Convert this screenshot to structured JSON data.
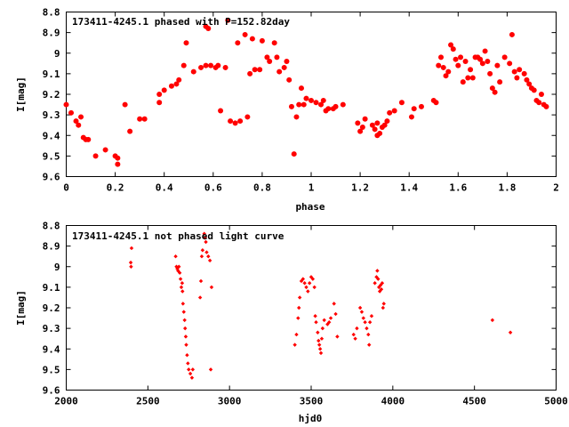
{
  "chart_data": [
    {
      "type": "scatter",
      "title": "173411-4245.1 phased with P=152.82day",
      "xlabel": "phase",
      "ylabel": "I[mag]",
      "xlim": [
        0,
        2
      ],
      "ylim": [
        8.8,
        9.6
      ],
      "y_inverted": true,
      "xticks": [
        0,
        0.2,
        0.4,
        0.6,
        0.8,
        1,
        1.2,
        1.4,
        1.6,
        1.8,
        2
      ],
      "xtick_labels": [
        "0",
        "0.2",
        "0.4",
        "0.6",
        "0.8",
        "1",
        "1.2",
        "1.4",
        "1.6",
        "1.8",
        "2"
      ],
      "yticks": [
        8.8,
        8.9,
        9.0,
        9.1,
        9.2,
        9.3,
        9.4,
        9.5,
        9.6
      ],
      "ytick_labels": [
        "8.8",
        "8.9",
        "9",
        "9.1",
        "9.2",
        "9.3",
        "9.4",
        "9.5",
        "9.6"
      ],
      "marker_color": "#ff0000",
      "marker": "filled circle",
      "points": [
        [
          0.0,
          9.25
        ],
        [
          0.02,
          9.29
        ],
        [
          0.04,
          9.33
        ],
        [
          0.05,
          9.35
        ],
        [
          0.06,
          9.31
        ],
        [
          0.07,
          9.41
        ],
        [
          0.08,
          9.42
        ],
        [
          0.09,
          9.42
        ],
        [
          0.12,
          9.5
        ],
        [
          0.16,
          9.47
        ],
        [
          0.2,
          9.5
        ],
        [
          0.21,
          9.54
        ],
        [
          0.21,
          9.51
        ],
        [
          0.24,
          9.25
        ],
        [
          0.26,
          9.38
        ],
        [
          0.3,
          9.32
        ],
        [
          0.32,
          9.32
        ],
        [
          0.38,
          9.24
        ],
        [
          0.38,
          9.2
        ],
        [
          0.4,
          9.18
        ],
        [
          0.43,
          9.16
        ],
        [
          0.45,
          9.15
        ],
        [
          0.46,
          9.13
        ],
        [
          0.48,
          9.06
        ],
        [
          0.49,
          8.95
        ],
        [
          0.52,
          9.09
        ],
        [
          0.55,
          9.07
        ],
        [
          0.57,
          9.06
        ],
        [
          0.57,
          8.87
        ],
        [
          0.58,
          8.88
        ],
        [
          0.59,
          9.06
        ],
        [
          0.61,
          9.07
        ],
        [
          0.62,
          9.06
        ],
        [
          0.63,
          9.28
        ],
        [
          0.65,
          9.07
        ],
        [
          0.66,
          8.84
        ],
        [
          0.67,
          9.33
        ],
        [
          0.69,
          9.34
        ],
        [
          0.7,
          8.95
        ],
        [
          0.71,
          9.33
        ],
        [
          0.73,
          8.91
        ],
        [
          0.74,
          9.31
        ],
        [
          0.75,
          9.1
        ],
        [
          0.76,
          8.93
        ],
        [
          0.77,
          9.08
        ],
        [
          0.79,
          9.08
        ],
        [
          0.8,
          8.94
        ],
        [
          0.82,
          9.02
        ],
        [
          0.83,
          9.04
        ],
        [
          0.85,
          8.95
        ],
        [
          0.86,
          9.02
        ],
        [
          0.87,
          9.09
        ],
        [
          0.89,
          9.07
        ],
        [
          0.9,
          9.04
        ],
        [
          0.91,
          9.13
        ],
        [
          0.92,
          9.26
        ],
        [
          0.93,
          9.49
        ],
        [
          0.94,
          9.31
        ],
        [
          0.95,
          9.25
        ],
        [
          0.96,
          9.17
        ],
        [
          0.97,
          9.25
        ],
        [
          0.98,
          9.22
        ],
        [
          1.0,
          9.23
        ],
        [
          1.02,
          9.24
        ],
        [
          1.04,
          9.25
        ],
        [
          1.05,
          9.23
        ],
        [
          1.06,
          9.28
        ],
        [
          1.07,
          9.27
        ],
        [
          1.09,
          9.27
        ],
        [
          1.1,
          9.26
        ],
        [
          1.13,
          9.25
        ],
        [
          1.19,
          9.34
        ],
        [
          1.2,
          9.38
        ],
        [
          1.21,
          9.36
        ],
        [
          1.22,
          9.32
        ],
        [
          1.25,
          9.35
        ],
        [
          1.26,
          9.37
        ],
        [
          1.27,
          9.34
        ],
        [
          1.27,
          9.4
        ],
        [
          1.28,
          9.39
        ],
        [
          1.29,
          9.36
        ],
        [
          1.3,
          9.35
        ],
        [
          1.31,
          9.33
        ],
        [
          1.32,
          9.29
        ],
        [
          1.34,
          9.28
        ],
        [
          1.37,
          9.24
        ],
        [
          1.41,
          9.31
        ],
        [
          1.42,
          9.27
        ],
        [
          1.45,
          9.26
        ],
        [
          1.5,
          9.23
        ],
        [
          1.51,
          9.24
        ],
        [
          1.52,
          9.06
        ],
        [
          1.53,
          9.02
        ],
        [
          1.54,
          9.07
        ],
        [
          1.55,
          9.11
        ],
        [
          1.56,
          9.09
        ],
        [
          1.57,
          8.96
        ],
        [
          1.58,
          8.98
        ],
        [
          1.59,
          9.03
        ],
        [
          1.6,
          9.06
        ],
        [
          1.61,
          9.02
        ],
        [
          1.62,
          9.14
        ],
        [
          1.63,
          9.04
        ],
        [
          1.64,
          9.12
        ],
        [
          1.65,
          9.08
        ],
        [
          1.66,
          9.12
        ],
        [
          1.67,
          9.02
        ],
        [
          1.68,
          9.02
        ],
        [
          1.69,
          9.03
        ],
        [
          1.7,
          9.05
        ],
        [
          1.71,
          8.99
        ],
        [
          1.72,
          9.04
        ],
        [
          1.73,
          9.1
        ],
        [
          1.74,
          9.17
        ],
        [
          1.75,
          9.19
        ],
        [
          1.76,
          9.06
        ],
        [
          1.77,
          9.14
        ],
        [
          1.79,
          9.02
        ],
        [
          1.81,
          9.05
        ],
        [
          1.82,
          8.91
        ],
        [
          1.83,
          9.09
        ],
        [
          1.84,
          9.12
        ],
        [
          1.85,
          9.08
        ],
        [
          1.87,
          9.1
        ],
        [
          1.88,
          9.13
        ],
        [
          1.89,
          9.15
        ],
        [
          1.9,
          9.17
        ],
        [
          1.91,
          9.18
        ],
        [
          1.92,
          9.23
        ],
        [
          1.93,
          9.24
        ],
        [
          1.94,
          9.2
        ],
        [
          1.95,
          9.25
        ],
        [
          1.96,
          9.26
        ]
      ]
    },
    {
      "type": "scatter",
      "title": "173411-4245.1 not phased light curve",
      "xlabel": "hjd0",
      "ylabel": "I[mag]",
      "xlim": [
        2000,
        5000
      ],
      "ylim": [
        8.8,
        9.6
      ],
      "y_inverted": true,
      "xticks": [
        2000,
        2500,
        3000,
        3500,
        4000,
        4500,
        5000
      ],
      "xtick_labels": [
        "2000",
        "2500",
        "3000",
        "3500",
        "4000",
        "4500",
        "5000"
      ],
      "yticks": [
        8.8,
        8.9,
        9.0,
        9.1,
        9.2,
        9.3,
        9.4,
        9.5,
        9.6
      ],
      "ytick_labels": [
        "8.8",
        "8.9",
        "9",
        "9.1",
        "9.2",
        "9.3",
        "9.4",
        "9.5",
        "9.6"
      ],
      "marker_color": "#ff0000",
      "marker": "small filled diamond",
      "points": [
        [
          2395,
          8.98
        ],
        [
          2397,
          9.0
        ],
        [
          2400,
          8.91
        ],
        [
          2670,
          8.95
        ],
        [
          2675,
          9.0
        ],
        [
          2680,
          9.01
        ],
        [
          2685,
          9.02
        ],
        [
          2690,
          9.0
        ],
        [
          2695,
          9.03
        ],
        [
          2700,
          9.06
        ],
        [
          2705,
          9.1
        ],
        [
          2710,
          9.08
        ],
        [
          2712,
          9.12
        ],
        [
          2715,
          9.18
        ],
        [
          2720,
          9.22
        ],
        [
          2725,
          9.26
        ],
        [
          2728,
          9.3
        ],
        [
          2732,
          9.34
        ],
        [
          2735,
          9.38
        ],
        [
          2740,
          9.43
        ],
        [
          2745,
          9.47
        ],
        [
          2750,
          9.5
        ],
        [
          2760,
          9.52
        ],
        [
          2770,
          9.54
        ],
        [
          2775,
          9.5
        ],
        [
          2820,
          9.15
        ],
        [
          2825,
          9.07
        ],
        [
          2830,
          8.95
        ],
        [
          2835,
          8.92
        ],
        [
          2845,
          8.84
        ],
        [
          2850,
          8.86
        ],
        [
          2855,
          8.88
        ],
        [
          2860,
          8.93
        ],
        [
          2870,
          8.95
        ],
        [
          2880,
          8.97
        ],
        [
          2885,
          9.5
        ],
        [
          2890,
          9.1
        ],
        [
          3400,
          9.38
        ],
        [
          3410,
          9.33
        ],
        [
          3420,
          9.25
        ],
        [
          3425,
          9.2
        ],
        [
          3430,
          9.15
        ],
        [
          3440,
          9.07
        ],
        [
          3450,
          9.06
        ],
        [
          3460,
          9.08
        ],
        [
          3470,
          9.1
        ],
        [
          3480,
          9.12
        ],
        [
          3490,
          9.08
        ],
        [
          3500,
          9.05
        ],
        [
          3510,
          9.06
        ],
        [
          3520,
          9.1
        ],
        [
          3525,
          9.24
        ],
        [
          3530,
          9.27
        ],
        [
          3540,
          9.32
        ],
        [
          3545,
          9.36
        ],
        [
          3550,
          9.38
        ],
        [
          3555,
          9.4
        ],
        [
          3560,
          9.42
        ],
        [
          3565,
          9.35
        ],
        [
          3570,
          9.3
        ],
        [
          3580,
          9.26
        ],
        [
          3600,
          9.28
        ],
        [
          3610,
          9.27
        ],
        [
          3620,
          9.25
        ],
        [
          3640,
          9.18
        ],
        [
          3650,
          9.23
        ],
        [
          3660,
          9.34
        ],
        [
          3760,
          9.33
        ],
        [
          3770,
          9.35
        ],
        [
          3780,
          9.3
        ],
        [
          3800,
          9.2
        ],
        [
          3810,
          9.22
        ],
        [
          3820,
          9.25
        ],
        [
          3830,
          9.27
        ],
        [
          3840,
          9.3
        ],
        [
          3850,
          9.33
        ],
        [
          3855,
          9.38
        ],
        [
          3860,
          9.27
        ],
        [
          3870,
          9.24
        ],
        [
          3890,
          9.08
        ],
        [
          3900,
          9.05
        ],
        [
          3905,
          9.02
        ],
        [
          3910,
          9.06
        ],
        [
          3915,
          9.1
        ],
        [
          3920,
          9.12
        ],
        [
          3925,
          9.09
        ],
        [
          3930,
          9.11
        ],
        [
          3935,
          9.08
        ],
        [
          3940,
          9.2
        ],
        [
          3945,
          9.18
        ],
        [
          4610,
          9.26
        ],
        [
          4720,
          9.32
        ]
      ]
    }
  ]
}
